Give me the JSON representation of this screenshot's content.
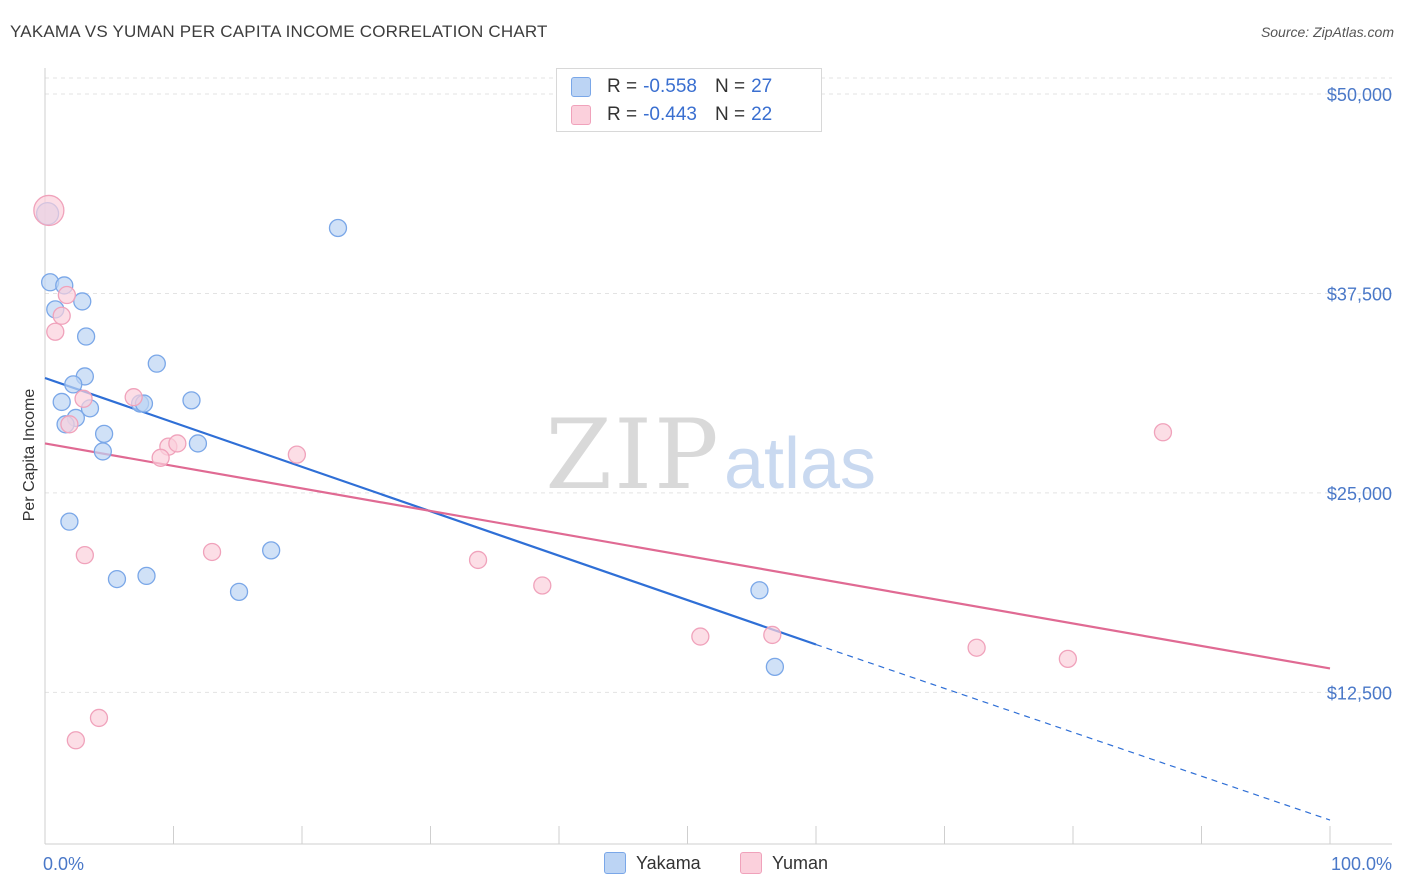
{
  "title": "YAKAMA VS YUMAN PER CAPITA INCOME CORRELATION CHART",
  "source": "Source: ZipAtlas.com",
  "watermark": {
    "zip": "ZIP",
    "atlas": "atlas"
  },
  "legend": {
    "rows": [
      {
        "r_label": "R =",
        "r_value": "-0.558",
        "n_label": "N =",
        "n_value": "27"
      },
      {
        "r_label": "R =",
        "r_value": "-0.443",
        "n_label": "N =",
        "n_value": "22"
      }
    ]
  },
  "chart_data": {
    "type": "scatter",
    "title": "YAKAMA VS YUMAN PER CAPITA INCOME CORRELATION CHART",
    "xlabel": "",
    "ylabel": "Per Capita Income",
    "xlim": [
      0,
      100
    ],
    "ylim": [
      3000,
      51000
    ],
    "x_tick_labels": [
      "0.0%",
      "100.0%"
    ],
    "y_ticks": [
      12500,
      25000,
      37500,
      50000
    ],
    "y_tick_labels": [
      "$12,500",
      "$25,000",
      "$37,500",
      "$50,000"
    ],
    "grid": true,
    "legend_position": "bottom-center",
    "series": [
      {
        "name": "Yakama",
        "color": "#7aa7e8",
        "fill": "#bcd4f4",
        "line_color": "#2f6fd6",
        "trend": {
          "x0": 0,
          "y0": 32200,
          "x1": 60,
          "y1": 15500,
          "dashed_to_x": 100,
          "dashed_to_y": 4500
        },
        "points": [
          {
            "x": 0.2,
            "y": 42500,
            "size": 22
          },
          {
            "x": 0.4,
            "y": 38200
          },
          {
            "x": 0.8,
            "y": 36500
          },
          {
            "x": 1.5,
            "y": 38000
          },
          {
            "x": 2.9,
            "y": 37000
          },
          {
            "x": 3.2,
            "y": 34800
          },
          {
            "x": 3.1,
            "y": 32300
          },
          {
            "x": 2.2,
            "y": 31800
          },
          {
            "x": 1.3,
            "y": 30700
          },
          {
            "x": 3.5,
            "y": 30300
          },
          {
            "x": 2.4,
            "y": 29700
          },
          {
            "x": 1.6,
            "y": 29300
          },
          {
            "x": 4.6,
            "y": 28700
          },
          {
            "x": 4.5,
            "y": 27600
          },
          {
            "x": 8.7,
            "y": 33100
          },
          {
            "x": 7.4,
            "y": 30600
          },
          {
            "x": 7.7,
            "y": 30600
          },
          {
            "x": 11.4,
            "y": 30800
          },
          {
            "x": 11.9,
            "y": 28100
          },
          {
            "x": 1.9,
            "y": 23200
          },
          {
            "x": 5.6,
            "y": 19600
          },
          {
            "x": 7.9,
            "y": 19800
          },
          {
            "x": 15.1,
            "y": 18800
          },
          {
            "x": 17.6,
            "y": 21400
          },
          {
            "x": 22.8,
            "y": 41600
          },
          {
            "x": 55.6,
            "y": 18900
          },
          {
            "x": 56.8,
            "y": 14100
          }
        ]
      },
      {
        "name": "Yuman",
        "color": "#f0a2bb",
        "fill": "#fbd0dc",
        "line_color": "#e06a93",
        "trend": {
          "x0": 0,
          "y0": 28100,
          "x1": 100,
          "y1": 14000
        },
        "points": [
          {
            "x": 0.3,
            "y": 42700,
            "size": 30
          },
          {
            "x": 1.7,
            "y": 37400
          },
          {
            "x": 1.3,
            "y": 36100
          },
          {
            "x": 0.8,
            "y": 35100
          },
          {
            "x": 3.0,
            "y": 30900
          },
          {
            "x": 6.9,
            "y": 31000
          },
          {
            "x": 1.9,
            "y": 29300
          },
          {
            "x": 9.6,
            "y": 27900
          },
          {
            "x": 10.3,
            "y": 28100
          },
          {
            "x": 9.0,
            "y": 27200
          },
          {
            "x": 19.6,
            "y": 27400
          },
          {
            "x": 3.1,
            "y": 21100
          },
          {
            "x": 13.0,
            "y": 21300
          },
          {
            "x": 33.7,
            "y": 20800
          },
          {
            "x": 38.7,
            "y": 19200
          },
          {
            "x": 51.0,
            "y": 16000
          },
          {
            "x": 56.6,
            "y": 16100
          },
          {
            "x": 72.5,
            "y": 15300
          },
          {
            "x": 79.6,
            "y": 14600
          },
          {
            "x": 87.0,
            "y": 28800
          },
          {
            "x": 4.2,
            "y": 10900
          },
          {
            "x": 2.4,
            "y": 9500
          }
        ]
      }
    ]
  }
}
